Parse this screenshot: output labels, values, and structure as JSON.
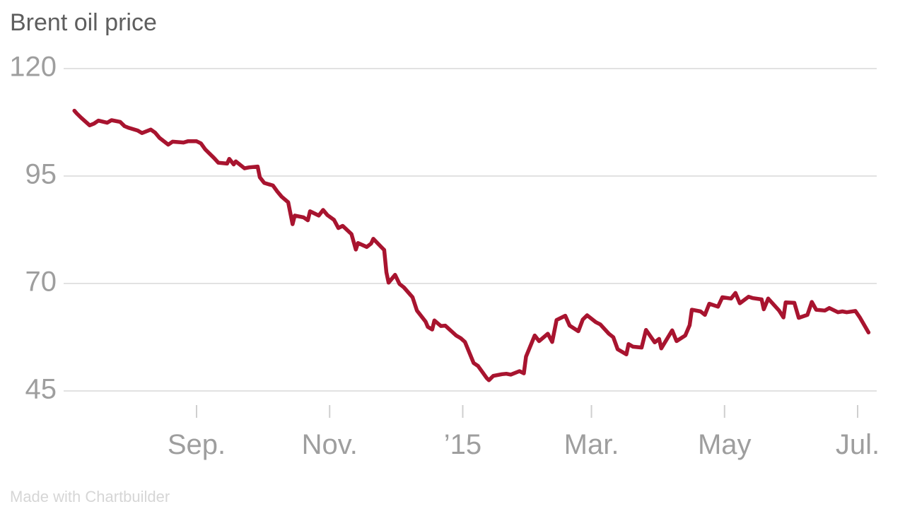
{
  "title": "Brent oil price",
  "credit": "Made with Chartbuilder",
  "colors": {
    "line": "#A8142F",
    "gridline": "#e2e2e2",
    "tick": "#cfcfcf",
    "title_text": "#5e5e5e",
    "axis_text": "#9e9e9e",
    "credit_text": "#d6d6d6",
    "background": "#ffffff"
  },
  "chart_data": {
    "type": "line",
    "title": "Brent oil price",
    "xlabel": "",
    "ylabel": "",
    "grid": "horizontal",
    "legend": "none",
    "y_axis": {
      "range": [
        45,
        120
      ],
      "ticks": [
        120,
        95,
        70,
        45
      ]
    },
    "x_axis": {
      "tick_dates": [
        "2014-09-01",
        "2014-11-01",
        "2015-01-01",
        "2015-03-01",
        "2015-05-01",
        "2015-07-01"
      ],
      "tick_labels": [
        "Sep.",
        "Nov.",
        "’15",
        "Mar.",
        "May",
        "Jul."
      ]
    },
    "series": [
      {
        "name": "Brent oil price",
        "color": "#A8142F",
        "points": [
          [
            "2014-07-07",
            110.2
          ],
          [
            "2014-07-08",
            109.6
          ],
          [
            "2014-07-10",
            108.6
          ],
          [
            "2014-07-14",
            106.8
          ],
          [
            "2014-07-16",
            107.2
          ],
          [
            "2014-07-18",
            107.9
          ],
          [
            "2014-07-22",
            107.4
          ],
          [
            "2014-07-24",
            108.0
          ],
          [
            "2014-07-28",
            107.6
          ],
          [
            "2014-07-30",
            106.6
          ],
          [
            "2014-08-01",
            106.2
          ],
          [
            "2014-08-05",
            105.6
          ],
          [
            "2014-08-07",
            105.0
          ],
          [
            "2014-08-11",
            105.8
          ],
          [
            "2014-08-13",
            105.1
          ],
          [
            "2014-08-15",
            103.9
          ],
          [
            "2014-08-19",
            102.3
          ],
          [
            "2014-08-21",
            103.0
          ],
          [
            "2014-08-26",
            102.8
          ],
          [
            "2014-08-28",
            103.1
          ],
          [
            "2014-09-01",
            103.1
          ],
          [
            "2014-09-03",
            102.6
          ],
          [
            "2014-09-05",
            101.2
          ],
          [
            "2014-09-09",
            99.2
          ],
          [
            "2014-09-11",
            98.1
          ],
          [
            "2014-09-15",
            97.9
          ],
          [
            "2014-09-16",
            99.0
          ],
          [
            "2014-09-18",
            97.7
          ],
          [
            "2014-09-19",
            98.4
          ],
          [
            "2014-09-23",
            96.8
          ],
          [
            "2014-09-25",
            97.0
          ],
          [
            "2014-09-29",
            97.2
          ],
          [
            "2014-09-30",
            94.7
          ],
          [
            "2014-10-02",
            93.4
          ],
          [
            "2014-10-06",
            92.8
          ],
          [
            "2014-10-08",
            91.4
          ],
          [
            "2014-10-10",
            90.2
          ],
          [
            "2014-10-13",
            88.9
          ],
          [
            "2014-10-15",
            83.8
          ],
          [
            "2014-10-16",
            85.8
          ],
          [
            "2014-10-20",
            85.4
          ],
          [
            "2014-10-22",
            84.7
          ],
          [
            "2014-10-23",
            86.8
          ],
          [
            "2014-10-27",
            85.8
          ],
          [
            "2014-10-29",
            87.1
          ],
          [
            "2014-10-31",
            85.9
          ],
          [
            "2014-11-03",
            84.8
          ],
          [
            "2014-11-05",
            82.9
          ],
          [
            "2014-11-07",
            83.4
          ],
          [
            "2014-11-11",
            81.5
          ],
          [
            "2014-11-13",
            77.9
          ],
          [
            "2014-11-14",
            79.4
          ],
          [
            "2014-11-18",
            78.5
          ],
          [
            "2014-11-20",
            79.3
          ],
          [
            "2014-11-21",
            80.4
          ],
          [
            "2014-11-25",
            78.3
          ],
          [
            "2014-11-26",
            77.8
          ],
          [
            "2014-11-27",
            72.6
          ],
          [
            "2014-11-28",
            70.2
          ],
          [
            "2014-12-01",
            72.0
          ],
          [
            "2014-12-03",
            69.9
          ],
          [
            "2014-12-05",
            69.1
          ],
          [
            "2014-12-09",
            66.8
          ],
          [
            "2014-12-11",
            63.7
          ],
          [
            "2014-12-15",
            61.1
          ],
          [
            "2014-12-16",
            59.9
          ],
          [
            "2014-12-18",
            59.3
          ],
          [
            "2014-12-19",
            61.4
          ],
          [
            "2014-12-22",
            60.1
          ],
          [
            "2014-12-24",
            60.2
          ],
          [
            "2014-12-29",
            57.9
          ],
          [
            "2014-12-31",
            57.3
          ],
          [
            "2015-01-02",
            56.4
          ],
          [
            "2015-01-06",
            51.5
          ],
          [
            "2015-01-08",
            50.8
          ],
          [
            "2015-01-12",
            48.0
          ],
          [
            "2015-01-13",
            47.5
          ],
          [
            "2015-01-15",
            48.5
          ],
          [
            "2015-01-19",
            48.9
          ],
          [
            "2015-01-21",
            49.0
          ],
          [
            "2015-01-23",
            48.8
          ],
          [
            "2015-01-27",
            49.6
          ],
          [
            "2015-01-29",
            49.1
          ],
          [
            "2015-01-30",
            53.0
          ],
          [
            "2015-02-03",
            57.9
          ],
          [
            "2015-02-05",
            56.6
          ],
          [
            "2015-02-09",
            58.3
          ],
          [
            "2015-02-11",
            56.4
          ],
          [
            "2015-02-13",
            61.5
          ],
          [
            "2015-02-17",
            62.5
          ],
          [
            "2015-02-19",
            60.2
          ],
          [
            "2015-02-23",
            58.9
          ],
          [
            "2015-02-25",
            61.6
          ],
          [
            "2015-02-27",
            62.6
          ],
          [
            "2015-03-03",
            61.0
          ],
          [
            "2015-03-05",
            60.5
          ],
          [
            "2015-03-09",
            58.3
          ],
          [
            "2015-03-11",
            57.5
          ],
          [
            "2015-03-13",
            54.7
          ],
          [
            "2015-03-17",
            53.5
          ],
          [
            "2015-03-18",
            55.9
          ],
          [
            "2015-03-20",
            55.3
          ],
          [
            "2015-03-24",
            55.1
          ],
          [
            "2015-03-26",
            59.2
          ],
          [
            "2015-03-30",
            56.3
          ],
          [
            "2015-04-01",
            57.1
          ],
          [
            "2015-04-02",
            54.9
          ],
          [
            "2015-04-07",
            59.1
          ],
          [
            "2015-04-09",
            56.6
          ],
          [
            "2015-04-13",
            57.9
          ],
          [
            "2015-04-15",
            60.3
          ],
          [
            "2015-04-16",
            63.9
          ],
          [
            "2015-04-20",
            63.5
          ],
          [
            "2015-04-22",
            62.7
          ],
          [
            "2015-04-24",
            65.3
          ],
          [
            "2015-04-28",
            64.6
          ],
          [
            "2015-04-30",
            66.8
          ],
          [
            "2015-05-04",
            66.5
          ],
          [
            "2015-05-06",
            67.8
          ],
          [
            "2015-05-08",
            65.4
          ],
          [
            "2015-05-12",
            66.9
          ],
          [
            "2015-05-14",
            66.6
          ],
          [
            "2015-05-18",
            66.3
          ],
          [
            "2015-05-19",
            64.0
          ],
          [
            "2015-05-21",
            66.5
          ],
          [
            "2015-05-26",
            63.7
          ],
          [
            "2015-05-28",
            62.1
          ],
          [
            "2015-05-29",
            65.6
          ],
          [
            "2015-06-02",
            65.5
          ],
          [
            "2015-06-04",
            62.0
          ],
          [
            "2015-06-08",
            62.7
          ],
          [
            "2015-06-10",
            65.7
          ],
          [
            "2015-06-12",
            63.9
          ],
          [
            "2015-06-16",
            63.7
          ],
          [
            "2015-06-18",
            64.3
          ],
          [
            "2015-06-22",
            63.3
          ],
          [
            "2015-06-24",
            63.5
          ],
          [
            "2015-06-26",
            63.3
          ],
          [
            "2015-06-30",
            63.6
          ],
          [
            "2015-07-02",
            62.1
          ],
          [
            "2015-07-06",
            58.6
          ]
        ]
      }
    ]
  }
}
